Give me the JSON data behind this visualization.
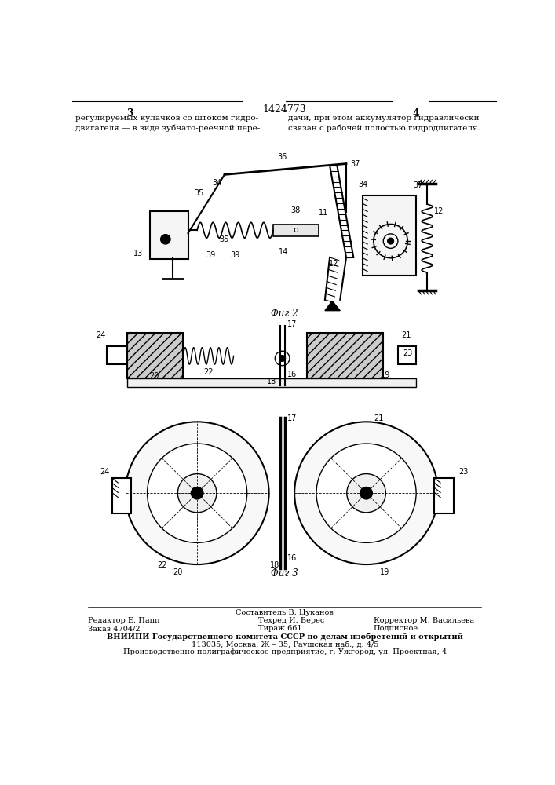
{
  "title": "1424773",
  "page_left": "3",
  "page_right": "4",
  "text_left": "регулируемых кулачков со штоком гидро-\nдвигателя — в виде зубчато-реечной пере-",
  "text_right": "дачи, при этом аккумулятор гидравлически\nсвязан с рабочей полостью гидродпигателя.",
  "fig2_label": "Фиг 2",
  "fig3_label": "Фиг 3",
  "footer_line1": "Составитель В. Цуканов",
  "footer_line2_left": "Редактор Е. Папп",
  "footer_line2_mid": "Техред И. Верес",
  "footer_line2_right": "Корректор М. Васильева",
  "footer_line3_left": "Заказ 4704/2",
  "footer_line3_mid": "Тираж 661",
  "footer_line3_right": "Подписное",
  "footer_line4": "ВНИИПИ Государственного комитета СССР по делам изобретений и открытий",
  "footer_line5": "113035, Москва, Ж – 35, Раушская наб., д. 4/5",
  "footer_line6": "Производственно-полиграфическое предприятие, г. Ужгород, ул. Проектная, 4",
  "bg_color": "#ffffff",
  "line_color": "#000000"
}
